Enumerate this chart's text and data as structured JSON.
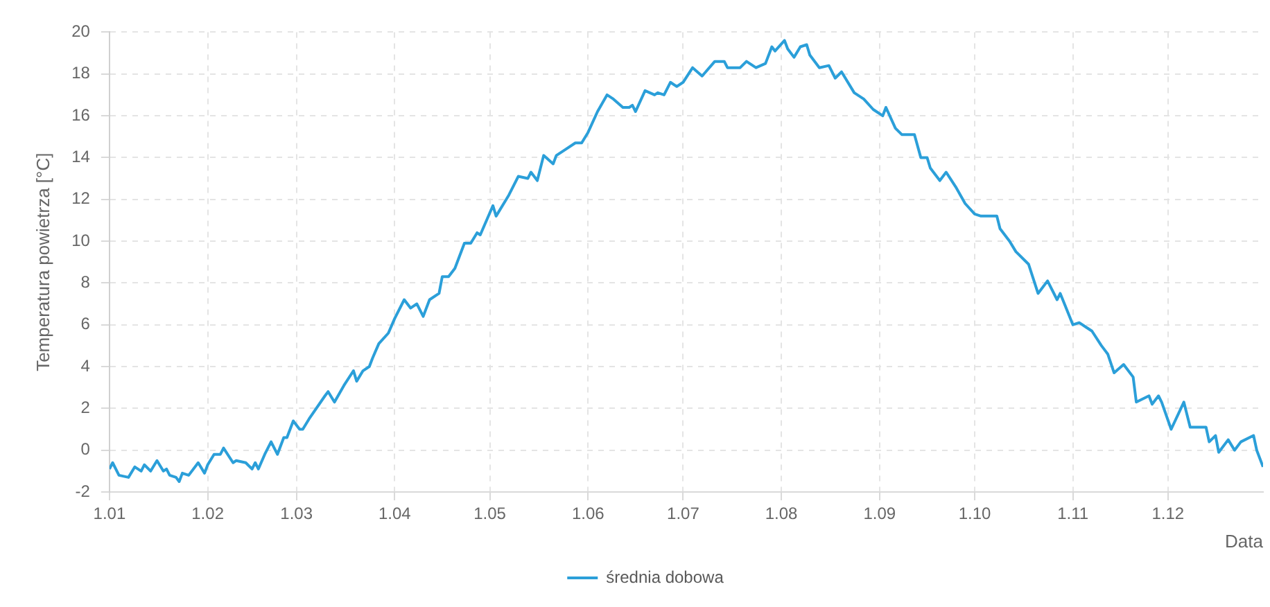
{
  "chart_data": {
    "type": "line",
    "xlabel": "Data",
    "ylabel": "Temperatura powietrza [°C]",
    "xlim": [
      "--01-01",
      "--12-31"
    ],
    "ylim": [
      -2,
      20
    ],
    "yticks": [
      -2,
      0,
      2,
      4,
      6,
      8,
      10,
      12,
      14,
      16,
      18,
      20
    ],
    "xticks": [
      {
        "value": "--01-01",
        "label": "1.01"
      },
      {
        "value": "--02-01",
        "label": "1.02"
      },
      {
        "value": "--03-01",
        "label": "1.03"
      },
      {
        "value": "--04-01",
        "label": "1.04"
      },
      {
        "value": "--05-01",
        "label": "1.05"
      },
      {
        "value": "--06-01",
        "label": "1.06"
      },
      {
        "value": "--07-01",
        "label": "1.07"
      },
      {
        "value": "--08-01",
        "label": "1.08"
      },
      {
        "value": "--09-01",
        "label": "1.09"
      },
      {
        "value": "--10-01",
        "label": "1.10"
      },
      {
        "value": "--11-01",
        "label": "1.11"
      },
      {
        "value": "--12-01",
        "label": "1.12"
      }
    ],
    "grid": true,
    "legend": "bottom",
    "marker": "none",
    "line_style": "solid",
    "series": [
      {
        "name": "średnia dobowa",
        "color": "#2b9fd9",
        "x": [
          "--01-01",
          "--01-02",
          "--01-04",
          "--01-07",
          "--01-09",
          "--01-11",
          "--01-12",
          "--01-14",
          "--01-16",
          "--01-18",
          "--01-19",
          "--01-20",
          "--01-22",
          "--01-23",
          "--01-24",
          "--01-26",
          "--01-29",
          "--01-31",
          "--02-01",
          "--02-03",
          "--02-05",
          "--02-06",
          "--02-09",
          "--02-10",
          "--02-13",
          "--02-15",
          "--02-16",
          "--02-17",
          "--02-19",
          "--02-21",
          "--02-23",
          "--02-25",
          "--02-26",
          "--02-28",
          "--03-02",
          "--03-03",
          "--03-05",
          "--03-10",
          "--03-11",
          "--03-13",
          "--03-16",
          "--03-19",
          "--03-20",
          "--03-22",
          "--03-24",
          "--03-25",
          "--03-27",
          "--03-30",
          "--04-01",
          "--04-04",
          "--04-06",
          "--04-08",
          "--04-10",
          "--04-12",
          "--04-15",
          "--04-16",
          "--04-18",
          "--04-20",
          "--04-23",
          "--04-25",
          "--04-27",
          "--04-28",
          "--05-02",
          "--05-03",
          "--05-07",
          "--05-10",
          "--05-13",
          "--05-14",
          "--05-16",
          "--05-18",
          "--05-21",
          "--05-22",
          "--05-25",
          "--05-28",
          "--05-30",
          "--06-01",
          "--06-04",
          "--06-07",
          "--06-09",
          "--06-12",
          "--06-14",
          "--06-15",
          "--06-16",
          "--06-19",
          "--06-22",
          "--06-23",
          "--06-25",
          "--06-27",
          "--06-29",
          "--07-01",
          "--07-04",
          "--07-07",
          "--07-11",
          "--07-14",
          "--07-15",
          "--07-19",
          "--07-21",
          "--07-24",
          "--07-27",
          "--07-29",
          "--07-30",
          "--08-02",
          "--08-03",
          "--08-05",
          "--08-07",
          "--08-09",
          "--08-10",
          "--08-13",
          "--08-16",
          "--08-18",
          "--08-20",
          "--08-24",
          "--08-27",
          "--08-30",
          "--09-02",
          "--09-03",
          "--09-06",
          "--09-08",
          "--09-12",
          "--09-14",
          "--09-16",
          "--09-17",
          "--09-20",
          "--09-22",
          "--09-25",
          "--09-28",
          "--10-01",
          "--10-03",
          "--10-06",
          "--10-08",
          "--10-09",
          "--10-12",
          "--10-14",
          "--10-18",
          "--10-21",
          "--10-24",
          "--10-27",
          "--10-28",
          "--11-01",
          "--11-03",
          "--11-05",
          "--11-07",
          "--11-10",
          "--11-12",
          "--11-14",
          "--11-17",
          "--11-20",
          "--11-21",
          "--11-25",
          "--11-26",
          "--11-28",
          "--11-29",
          "--12-02",
          "--12-06",
          "--12-08",
          "--12-10",
          "--12-13",
          "--12-14",
          "--12-16",
          "--12-17",
          "--12-20",
          "--12-22",
          "--12-24",
          "--12-28",
          "--12-29",
          "--12-31"
        ],
        "values": [
          -0.9,
          -0.6,
          -1.2,
          -1.3,
          -0.8,
          -1.0,
          -0.7,
          -1.0,
          -0.5,
          -1.0,
          -0.9,
          -1.2,
          -1.3,
          -1.5,
          -1.1,
          -1.2,
          -0.6,
          -1.1,
          -0.7,
          -0.2,
          -0.2,
          0.1,
          -0.6,
          -0.5,
          -0.6,
          -0.9,
          -0.6,
          -0.9,
          -0.2,
          0.4,
          -0.2,
          0.6,
          0.6,
          1.4,
          1.0,
          1.0,
          1.5,
          2.6,
          2.8,
          2.3,
          3.1,
          3.8,
          3.3,
          3.8,
          4.0,
          4.4,
          5.1,
          5.6,
          6.3,
          7.2,
          6.8,
          7.0,
          6.4,
          7.2,
          7.5,
          8.3,
          8.3,
          8.7,
          9.9,
          9.9,
          10.4,
          10.3,
          11.7,
          11.2,
          12.2,
          13.1,
          13.0,
          13.3,
          12.9,
          14.1,
          13.7,
          14.1,
          14.4,
          14.7,
          14.7,
          15.2,
          16.2,
          17.0,
          16.8,
          16.4,
          16.4,
          16.5,
          16.2,
          17.2,
          17.0,
          17.1,
          17.0,
          17.6,
          17.4,
          17.6,
          18.3,
          17.9,
          18.6,
          18.6,
          18.3,
          18.3,
          18.6,
          18.3,
          18.5,
          19.3,
          19.1,
          19.6,
          19.2,
          18.8,
          19.3,
          19.4,
          18.9,
          18.3,
          18.4,
          17.8,
          18.1,
          17.1,
          16.8,
          16.3,
          16.0,
          16.4,
          15.4,
          15.1,
          15.1,
          14.0,
          14.0,
          13.5,
          12.9,
          13.3,
          12.6,
          11.8,
          11.3,
          11.2,
          11.2,
          11.2,
          10.6,
          10.0,
          9.5,
          8.9,
          7.5,
          8.1,
          7.2,
          7.5,
          6.0,
          6.1,
          5.9,
          5.7,
          5.0,
          4.6,
          3.7,
          4.1,
          3.5,
          2.3,
          2.6,
          2.2,
          2.6,
          2.3,
          1.0,
          2.3,
          1.1,
          1.1,
          1.1,
          0.4,
          0.7,
          -0.1,
          0.5,
          0.0,
          0.4,
          0.7,
          0.0,
          -0.8
        ]
      }
    ]
  }
}
